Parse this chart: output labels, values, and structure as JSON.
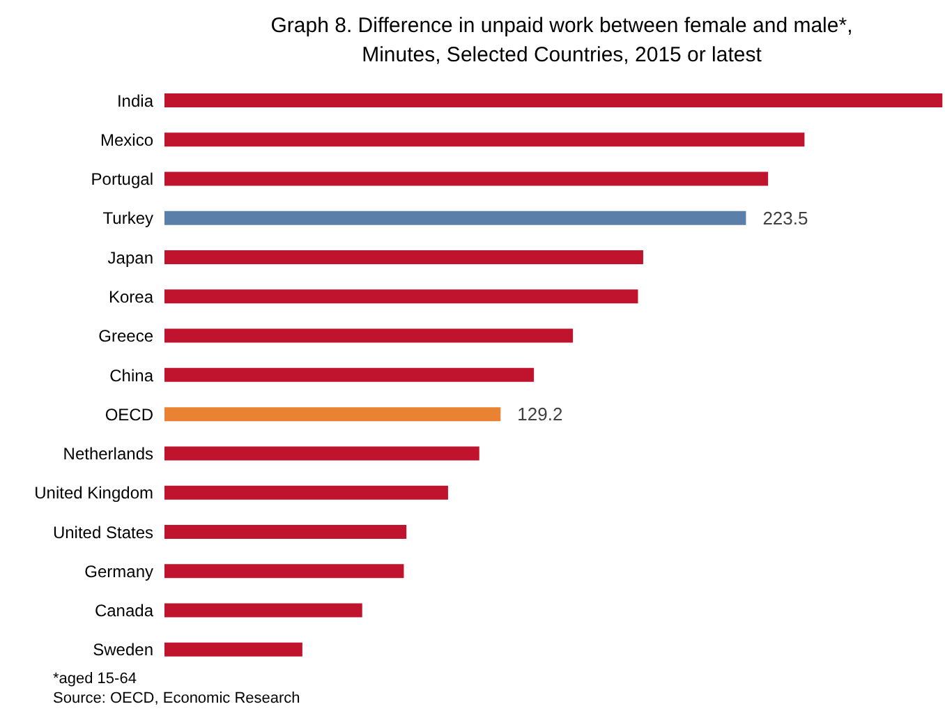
{
  "chart_data": {
    "type": "bar",
    "orientation": "horizontal",
    "title": "Graph 8. Difference in unpaid work between female and male*,\nMinutes, Selected Countries, 2015  or latest",
    "categories": [
      "India",
      "Mexico",
      "Portugal",
      "Turkey",
      "Japan",
      "Korea",
      "Greece",
      "China",
      "OECD",
      "Netherlands",
      "United Kingdom",
      "United States",
      "Germany",
      "Canada",
      "Sweden"
    ],
    "values": [
      299,
      246,
      232,
      223.5,
      184,
      182,
      157,
      142,
      129.2,
      121,
      109,
      93,
      92,
      76,
      53
    ],
    "colors": [
      "#c0142e",
      "#c0142e",
      "#c0142e",
      "#5a7fa8",
      "#c0142e",
      "#c0142e",
      "#c0142e",
      "#c0142e",
      "#ea8234",
      "#c0142e",
      "#c0142e",
      "#c0142e",
      "#c0142e",
      "#c0142e",
      "#c0142e"
    ],
    "value_labels": [
      null,
      null,
      null,
      "223.5",
      null,
      null,
      null,
      null,
      "129.2",
      null,
      null,
      null,
      null,
      null,
      null
    ],
    "xlim": [
      0,
      300
    ],
    "tick_labels": "y",
    "annotations": [
      "*aged 15-64",
      "Source: OECD, Economic Research"
    ]
  }
}
